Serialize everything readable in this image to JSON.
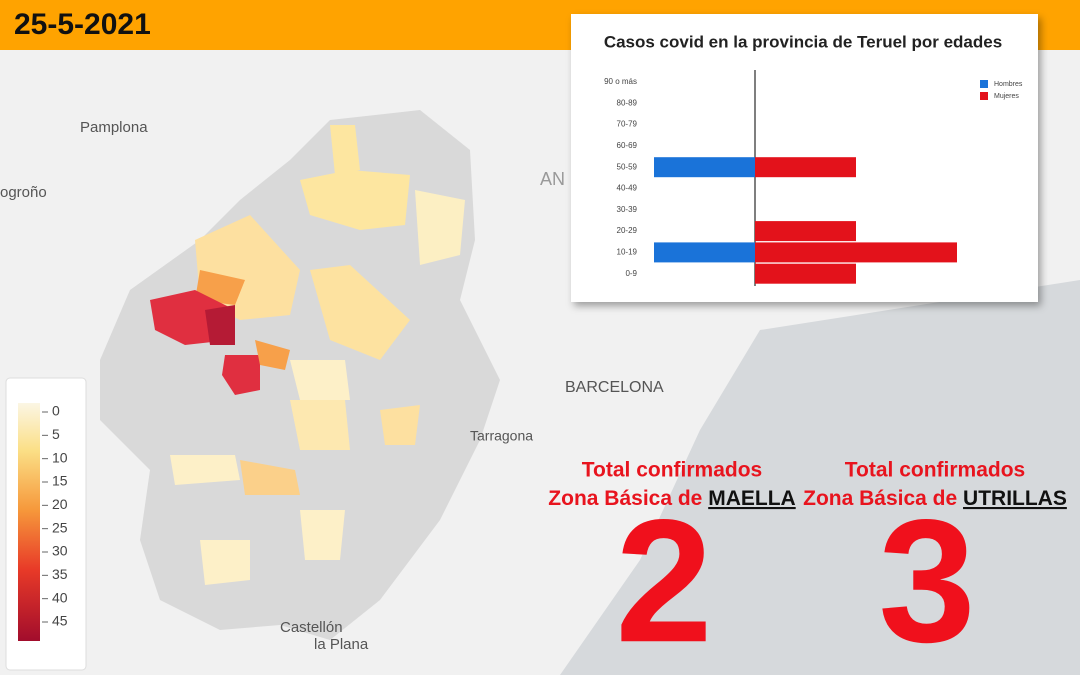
{
  "header": {
    "date": "25-5-2021"
  },
  "map": {
    "labels": [
      "Pamplona",
      "ogroño",
      "AN",
      "BARCELONA",
      "Tarragona",
      "Castellón",
      "la Plana"
    ]
  },
  "colorbar": {
    "ticks": [
      0,
      5,
      10,
      15,
      20,
      25,
      30,
      35,
      40,
      45
    ]
  },
  "chart_data": {
    "type": "bar",
    "title": "Casos covid en la provincia de Teruel por edades",
    "categories": [
      "0-9",
      "10-19",
      "20-29",
      "30-39",
      "40-49",
      "50-59",
      "60-69",
      "70-79",
      "80-89",
      "90 o más"
    ],
    "series": [
      {
        "name": "Hombres",
        "color": "#1a73d9",
        "values": [
          0,
          1,
          0,
          0,
          0,
          1,
          0,
          0,
          0,
          0
        ]
      },
      {
        "name": "Mujeres",
        "color": "#e3121b",
        "values": [
          1,
          2,
          1,
          0,
          0,
          1,
          0,
          0,
          0,
          0
        ]
      }
    ]
  },
  "totals": [
    {
      "heading": "Total confirmados",
      "prefix": "Zona Básica de",
      "zone": "MAELLA",
      "value": "2"
    },
    {
      "heading": "Total confirmados",
      "prefix": "Zona Básica de",
      "zone": "UTRILLAS",
      "value": "3"
    }
  ]
}
